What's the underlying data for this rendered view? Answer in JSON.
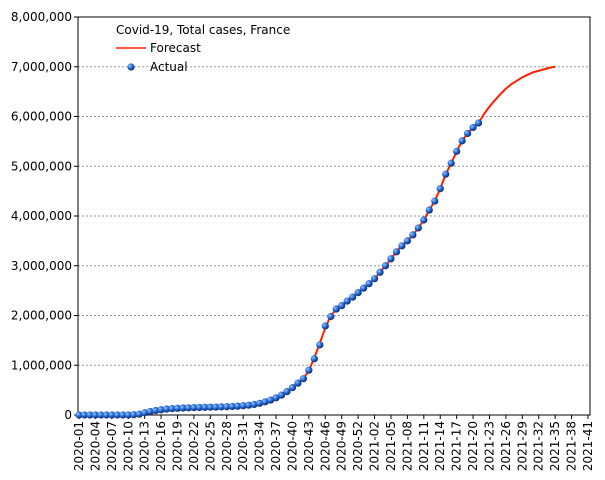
{
  "chart_data": {
    "type": "line",
    "title": "Covid-19, Total cases, France",
    "categories": [
      "2020-01",
      null,
      null,
      "2020-04",
      null,
      null,
      "2020-07",
      null,
      null,
      "2020-10",
      null,
      null,
      "2020-13",
      null,
      null,
      "2020-16",
      null,
      null,
      "2020-19",
      null,
      null,
      "2020-22",
      null,
      null,
      "2020-25",
      null,
      null,
      "2020-28",
      null,
      null,
      "2020-31",
      null,
      null,
      "2020-34",
      null,
      null,
      "2020-37",
      null,
      null,
      "2020-40",
      null,
      null,
      "2020-43",
      null,
      null,
      "2020-46",
      null,
      null,
      "2020-49",
      null,
      null,
      "2020-52",
      null,
      null,
      "2021-02",
      null,
      null,
      "2021-05",
      null,
      null,
      "2021-08",
      null,
      null,
      "2021-11",
      null,
      null,
      "2021-14",
      null,
      null,
      "2021-17",
      null,
      null,
      "2021-20",
      null,
      null,
      "2021-23",
      null,
      null,
      "2021-26",
      null,
      null,
      "2021-29",
      null,
      null,
      "2021-32",
      null,
      null,
      "2021-35",
      null,
      null,
      "2021-38",
      null,
      null,
      "2021-41"
    ],
    "series": [
      {
        "name": "Forecast",
        "color": "#ff2000",
        "style": "line",
        "values": [
          0,
          0,
          0,
          0,
          0,
          0,
          0,
          0,
          200,
          1500,
          5000,
          16000,
          45000,
          70000,
          90000,
          105000,
          120000,
          128000,
          135000,
          140000,
          144000,
          148000,
          151000,
          154000,
          157000,
          160000,
          163000,
          167000,
          172000,
          178000,
          186000,
          197000,
          212000,
          235000,
          265000,
          300000,
          345000,
          400000,
          470000,
          550000,
          640000,
          730000,
          900000,
          1150000,
          1450000,
          1750000,
          2000000,
          2120000,
          2200000,
          2290000,
          2370000,
          2460000,
          2550000,
          2640000,
          2740000,
          2870000,
          3000000,
          3140000,
          3280000,
          3400000,
          3500000,
          3620000,
          3760000,
          3920000,
          4120000,
          4300000,
          4550000,
          4840000,
          5060000,
          5300000,
          5510000,
          5660000,
          5780000,
          5870000,
          6050000,
          6200000,
          6330000,
          6450000,
          6560000,
          6650000,
          6720000,
          6790000,
          6840000,
          6890000,
          6920000,
          6950000,
          6980000,
          7000000,
          null,
          null,
          null,
          null,
          null,
          null
        ]
      },
      {
        "name": "Actual",
        "color": "#1f5fd0",
        "style": "markers",
        "values": [
          0,
          0,
          0,
          0,
          0,
          0,
          0,
          0,
          200,
          1500,
          5000,
          16000,
          45000,
          70000,
          90000,
          105000,
          120000,
          128000,
          135000,
          140000,
          144000,
          148000,
          151000,
          154000,
          157000,
          160000,
          163000,
          167000,
          172000,
          178000,
          186000,
          197000,
          212000,
          235000,
          265000,
          300000,
          345000,
          400000,
          470000,
          550000,
          640000,
          730000,
          900000,
          1130000,
          1410000,
          1790000,
          1980000,
          2130000,
          2200000,
          2290000,
          2370000,
          2460000,
          2550000,
          2640000,
          2740000,
          2870000,
          3000000,
          3140000,
          3280000,
          3400000,
          3500000,
          3620000,
          3760000,
          3920000,
          4120000,
          4300000,
          4550000,
          4840000,
          5060000,
          5300000,
          5510000,
          5660000,
          5780000,
          5870000,
          null,
          null,
          null,
          null,
          null,
          null,
          null,
          null,
          null,
          null,
          null,
          null,
          null,
          null,
          null,
          null,
          null,
          null,
          null,
          null
        ]
      }
    ],
    "ylim": [
      0,
      8000000
    ],
    "yticks": [
      0,
      {
        "value": 1000000,
        "label": "1,000,000"
      },
      {
        "value": 2000000,
        "label": "2,000,000"
      },
      {
        "value": 3000000,
        "label": "3,000,000"
      },
      {
        "value": 4000000,
        "label": "4,000,000"
      },
      {
        "value": 5000000,
        "label": "5,000,000"
      },
      {
        "value": 6000000,
        "label": "6,000,000"
      },
      {
        "value": 7000000,
        "label": "7,000,000"
      },
      {
        "value": 8000000,
        "label": "8,000,000"
      }
    ],
    "grid": true
  }
}
